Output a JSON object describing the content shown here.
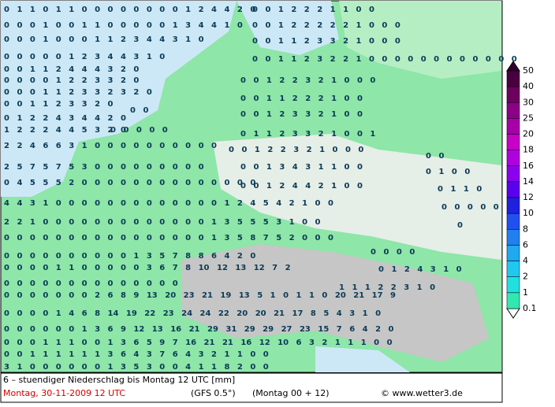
{
  "map": {
    "grid_rows": [
      "0 1 1 0 1 1 0 0 0 0 0 0 0 0 1 2 4 4 2 0",
      "0 0 1 2 2 2 1 1 0 0",
      "0 0 0 1 0 0 1 1 0 0 0 0 0 1 3 4 4 1 0",
      "0 0 1 2 2 2 2 2 1 0 0 0",
      "0 0 0 1 0 0 0 1 1 2 3 4 4 3 1 0",
      "0 0 1 1 2 3 3 2 1 0 0 0",
      "0 0 0 0 0 1 2 3 4 4 3 1 0",
      "0 0 1 1 2 3 2 2 1 0 0 0 0 0 0 0 0 0 0 0 0",
      "0 0 1 1 2 4 4 4 3 2 0",
      "0 0 0 0 1 2 2 3 3 2 0",
      "0 0 1 2 2 3 2 1 0 0 0",
      "0 0 0 1 1 2 3 3 2 3 2 0",
      "0 0 1 1 2 3 3 2 0",
      "0 0",
      "0 0 1 1 2 2 2 1 0 0",
      "0 1 2 2 4 3 4 4 2 0",
      "0 0 1 2 3 3 2 1 0 0",
      "1 2 2 2 4 4 5 3 2 0",
      "0 0 0 0 0",
      "0 1 1 2 3 3 2 1 0 0 1",
      "2 2 4 6 6 3 1 0 0 0 0 0 0 0 0 0 0",
      "0 0 1 2 2 3 2 1 0 0 0",
      "0 0",
      "2 5 7 5 7 5 3 0 0 0 0 0 0 0 0 0",
      "0 0 1 3 4 3 1 1 0 0",
      "0 1 0 0",
      "0 4 5 5 5 2 0 0 0 0 0 0 0 0 0 0 0 0 0 0",
      "0 0 1 2 4 4 2 1 0 0",
      "0 1 1 0",
      "4 4 3 1 0 0 0 0 0 0 0 0 0 0 0 0 0 1 2 4 5 4 2 1 0 0",
      "0 0 0 0 0",
      "2 2 1 0 0 0 0 0 0 0 0 0 0 0 0 0 1 3 5 5 5 3 1 0 0",
      "0",
      "0 0 0 0 0 0 0 0 0 0 0 0 0 0 0 0 1 3 5 8 7 5 2 0 0 0",
      "0 0 0 0 0 0 0 0 0 0 1 3 5 7 8 8 6 4 2 0",
      "0 0 0 0",
      "0 0 0 0 1 1 0 0 0 0 0 3 6 7 8 10 12 13 12 7 2",
      "0 1 2 4 3 1 0",
      "0 0 0 0 0 0 0 0 0 0 0 0 0 0",
      "1 1 1 2 2 3 1 0",
      "0 0 0 0 0 0 0 2 6 8 9 13 20 23 21 19 13 5 1 0 1 1 0 20 21 17 9",
      "0 0 0 0 1 4 6 8 14 19 22 23 24 24 22 20 20 21 17 8 5 4 3 1 0",
      "0 0 0 0 0 0 1 3 6 9 12 13 16 21 29 31 29 29 27 23 15 7 6 4 2 0",
      "0 0 0 1 1 1 0 0 1 3 6 5 9 7 16 21 21 16 12 10 6 3 2 1 1 1 0 0",
      "0 0 1 1 1 1 1 1 3 6 4 3 7 6 4 3 2 1 1 0 0",
      "3 1 0 0 0 0 0 0 1 3 5 3 0 0 4 1 1 8 2 0 0"
    ],
    "legend": {
      "labels": [
        "50",
        "40",
        "30",
        "25",
        "20",
        "18",
        "16",
        "14",
        "12",
        "10",
        "8",
        "6",
        "4",
        "2",
        "1",
        "0.1"
      ],
      "colors": [
        "#4a0040",
        "#6e0060",
        "#8c0088",
        "#a800a8",
        "#c800c8",
        "#b000e0",
        "#8c00f0",
        "#5a00f0",
        "#2020e0",
        "#2050f0",
        "#2080f0",
        "#20a8f0",
        "#20c8f0",
        "#20e0e0",
        "#30e8b0"
      ]
    }
  },
  "footer": {
    "title": "6 – stuendiger Niederschlag bis Montag 12 UTC [mm]",
    "date": "Montag, 30-11-2009   12 UTC",
    "model": "(GFS 0.5°)",
    "run": "(Montag 00 + 12)",
    "credit": "© www.wetter3.de"
  }
}
